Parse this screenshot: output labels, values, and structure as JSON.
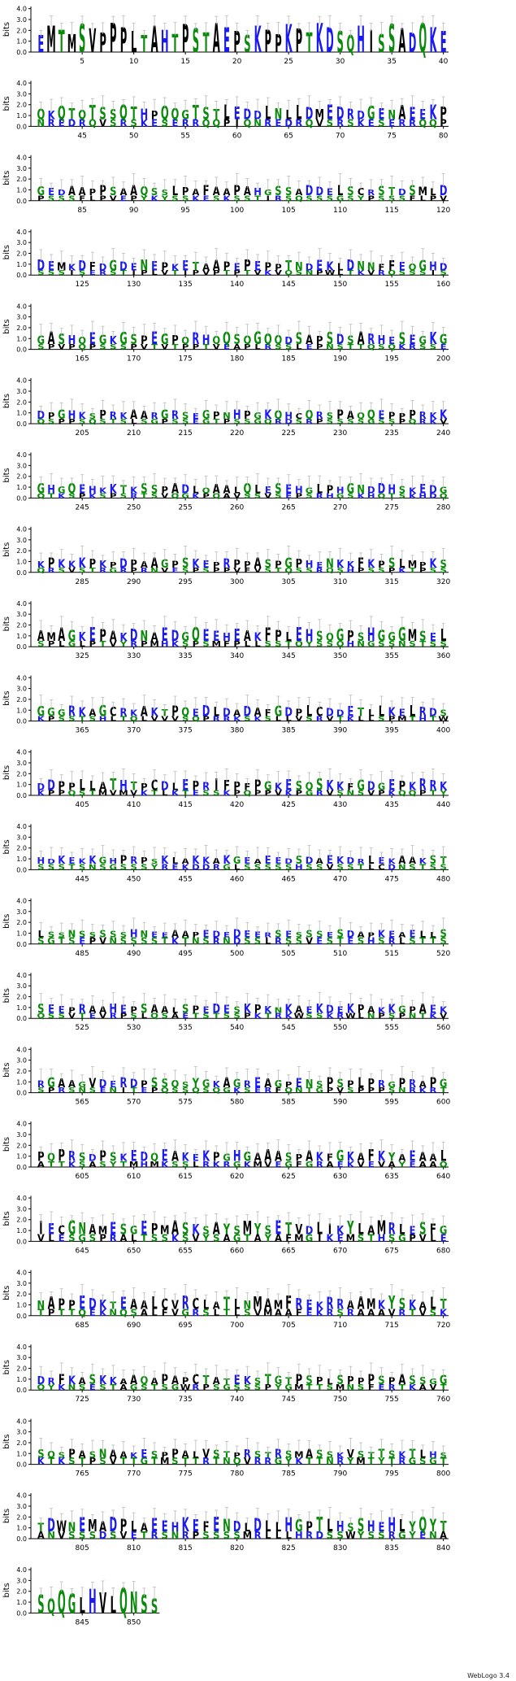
{
  "chart_data": {
    "type": "sequence-logo",
    "ylabel": "bits",
    "yticks": [
      "0.0",
      "1.0",
      "2.0",
      "3.0",
      "4.0"
    ],
    "ylim": [
      0,
      4.2
    ],
    "colors": {
      "hydrophobic": "#000000",
      "polar": "#0a8a0a",
      "basic": "#1a1aee",
      "acidic": "#1a1aee",
      "other": "#1a1aee"
    },
    "rows": [
      {
        "start": 1,
        "ticks": [
          5,
          10,
          15,
          20,
          25,
          30,
          35,
          40
        ],
        "top": "EMTMSVPPPLTAHTPSTAEPSKPPKPTKDSQHISSADQK",
        "bottom": "",
        "heights": [
          3.2,
          1.6
        ]
      },
      {
        "start": 41,
        "ticks": [
          45,
          50,
          55,
          60,
          65,
          70,
          75,
          80
        ],
        "top": "QKQTQTSSQTHPQQGTSTLEDDLNLLDMEDRDGENAEEKP",
        "bottom": "NREDRQVSRSKESERRQQPIQ",
        "heights": [
          2.6,
          1.2
        ]
      },
      {
        "start": 81,
        "ticks": [
          85,
          90,
          95,
          100,
          105,
          110,
          115,
          120
        ],
        "top": "GEDAAPPSAAQSSLPAFAAPAHGSSADDELSCRSTDSMLDNE",
        "bottom": "PSSSFLPVEPYKYSSKESKSSTIRSQSSSGSY",
        "heights": [
          1.8,
          0.9
        ]
      },
      {
        "start": 121,
        "ticks": [
          125,
          130,
          135,
          140,
          145,
          150,
          155,
          160
        ],
        "top": "DEMKDFDGDENEPKETAAPEPEPPTNDEKLDNNFFEQGH",
        "bottom": "SSSISERSTIPLVTIPVPTPTVKVQSNPWLTKVRQ",
        "heights": [
          1.9,
          0.8
        ]
      },
      {
        "start": 161,
        "ticks": [
          165,
          170,
          175,
          180,
          185,
          190,
          195,
          200
        ],
        "top": "GASHQEGKGSPEGPQRHQQSQGQQDSAPSDSARHESEGK",
        "bottom": "SPVPQPSSSPVTVTPPTVEAPLRSSLEPNSTTQSQKRSSEL",
        "heights": [
          2.2,
          0.9
        ]
      },
      {
        "start": 201,
        "ticks": [
          205,
          210,
          215,
          220,
          225,
          230,
          235,
          240
        ],
        "top": "DPGHKSPRKAARGRSEGPNHPGKQHCQRSPAQQEPPPRKKG",
        "bottom": "QSPPSQSTSLSGPSSEGTPSSGQRDSRPSSSSGSSPQRKVG",
        "heights": [
          1.7,
          0.8
        ]
      },
      {
        "start": 241,
        "ticks": [
          245,
          250,
          255,
          260,
          265,
          270,
          275,
          280
        ],
        "top": "GHGQEHKKTKSSPADLQAALQLESEHGLPHGNDDHSKED",
        "bottom": "QTKSPKSPSRTSVQGKPQAVSSVSEPSRHGSKHQTSKHD",
        "heights": [
          1.8,
          0.8
        ]
      },
      {
        "start": 281,
        "ticks": [
          285,
          290,
          295,
          300,
          305,
          310,
          315,
          320
        ],
        "top": "KPKKKPKPDPAAGPSKEPRPPASPGPHENKKFKPSLMPKSK",
        "bottom": "QRSVSTRGRPRNVESPSPPVFVSTQSSRQSHPSSPKTPSS",
        "heights": [
          1.8,
          0.8
        ]
      },
      {
        "start": 321,
        "ticks": [
          325,
          330,
          335,
          340,
          345,
          350,
          355,
          360
        ],
        "top": "AMAGKEPAKDNAEDGQEEHEAKFPLEHSQGPSHGGGMSEL",
        "bottom": "SPLGLPTVYRPMHKSPSMFPLLSSTQYSSQHNGSSNSTSS",
        "heights": [
          2.4,
          1.0
        ]
      },
      {
        "start": 361,
        "ticks": [
          365,
          370,
          375,
          380,
          385,
          390,
          395,
          400
        ],
        "top": "GGGRKAGCRKAKTPQEDLDADAFGDPLCDDETLLKELRDSP",
        "bottom": "KPSSTSHLTQLVVVSQPRRKSKSLLVSRVTKLLSPMTHTW",
        "heights": [
          1.9,
          0.8
        ]
      },
      {
        "start": 401,
        "ticks": [
          405,
          410,
          415,
          420,
          425,
          430,
          435,
          440
        ],
        "top": "DDPPLLATHTPCDLEPRIFPFPGKESQSKKFGDGEPKRRKK",
        "bottom": "KPPQSTMVMVKTLKTESSKPQPPVKPGRVSNSVPKQQPTYNP",
        "heights": [
          2.0,
          0.9
        ]
      },
      {
        "start": 441,
        "ticks": [
          445,
          450,
          455,
          460,
          465,
          470,
          475,
          480
        ],
        "top": "HDKEKKGHPRPSKLAKKAKGEAEEDSDAEKDRLEKAAKST",
        "bottom": "SSSTSNSGSSSYREKDDRGLSSSSSHSSVSSTLCDNSTSSS",
        "heights": [
          1.5,
          1.0
        ]
      },
      {
        "start": 481,
        "ticks": [
          485,
          490,
          495,
          500,
          505,
          510,
          515,
          520
        ],
        "top": "LSSNSSSSSHNEEAAPEDEDEERSESSSESDAPKEAEL",
        "bottom": "SGTSEPVNSSSSTKTNSRNDSSLRSSVESTESHSRLSTT",
        "heights": [
          1.4,
          1.1
        ]
      },
      {
        "start": 521,
        "ticks": [
          525,
          530,
          535,
          540,
          545,
          550,
          555,
          560
        ],
        "top": "SEEPRAAHEPSAALSPEDESKPKNKAEKDEKPAKKGPAEKH",
        "bottom": "QSSVTEVRPSLQSAETSTSSPKTRKWSSKRWLNPSPNTKV",
        "heights": [
          1.7,
          0.9
        ]
      },
      {
        "start": 561,
        "ticks": [
          565,
          570,
          575,
          580,
          585,
          590,
          595,
          600
        ],
        "top": "RGAAGVDERDPSSQSYGKAGREAGPENSPSPLPRGPRAPGK",
        "bottom": "SPRSNSENITEPQSSQSQGKSERFQNTGPVSPPPSNRKRTS",
        "heights": [
          1.8,
          0.9
        ]
      },
      {
        "start": 601,
        "ticks": [
          605,
          610,
          615,
          620,
          625,
          630,
          635,
          640
        ],
        "top": "PQPRSDPSKEDQEAKEKPGHGAAASPAKFGKAFKYAEAALSF",
        "bottom": "ATTKSASYTMHMKSSLRKRGKMVEGFGRAEKVEVAYEAAQLSY",
        "heights": [
          2.0,
          1.0
        ]
      },
      {
        "start": 641,
        "ticks": [
          645,
          650,
          655,
          660,
          665,
          670,
          675,
          680
        ],
        "top": "IECGNAMESGEPMASKSAYSMYSETVDLIKYLAMRLESFGDA",
        "bottom": "VLESGSPRALTSSKSVYSAGTAYAFMGIKEMSTHSGP",
        "heights": [
          2.4,
          1.2
        ]
      },
      {
        "start": 681,
        "ticks": [
          685,
          690,
          695,
          700,
          705,
          710,
          715,
          720
        ],
        "top": "NAPPEDKTEAALCVRCLATLNMAMFREKRRAAMKYSKALT",
        "bottom": "TPTTQEKNQSALFVGRSLTLSVMAAFEKRSRAAAVRTVSKN",
        "heights": [
          2.3,
          1.1
        ]
      },
      {
        "start": 721,
        "ticks": [
          725,
          730,
          735,
          740,
          745,
          750,
          755,
          760
        ],
        "top": "DRFKASKKAAQAPAPCTATEKSTGTPSPLSPPPSPASSGG",
        "bottom": "QYKNSESTAGSTSGWRPSGSSSPYGMTTSMNSFERTKAVT",
        "heights": [
          1.8,
          1.0
        ]
      },
      {
        "start": 761,
        "ticks": [
          765,
          770,
          775,
          780,
          785,
          790,
          795,
          800
        ],
        "top": "SQSPASNAAKESPPALVSTPRSTRSMASSKVSTTSKTLHS",
        "bottom": "KTKSTPSVTTGTMSTTRTNQVRRGYKTTNRYMTYTRGSGTE",
        "heights": [
          1.6,
          1.1
        ]
      },
      {
        "start": 801,
        "ticks": [
          805,
          810,
          815,
          820,
          825,
          830,
          835,
          840
        ],
        "top": "TDWNEMADPLAEEHKEFENDLDLLHGPTLHSSHEHLYQY",
        "bottom": "ANVSSSDSVETRSNRPSSSSMRLLLHRDSSWYSSRGYEN",
        "heights": [
          2.6,
          1.2
        ]
      },
      {
        "start": 841,
        "ticks": [
          845,
          850
        ],
        "top": "SQQGLHVLQNS",
        "bottom": "",
        "heights": [
          2.8,
          1.4
        ]
      }
    ],
    "last_position": 852
  },
  "footer": {
    "credit": "WebLogo 3.4"
  }
}
